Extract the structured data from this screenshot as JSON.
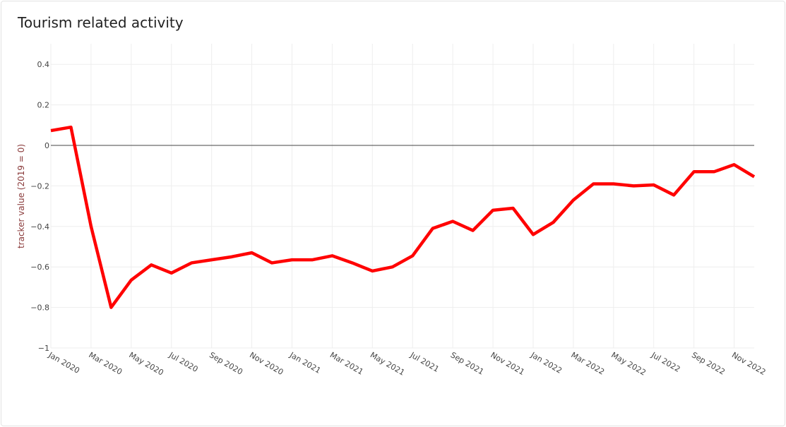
{
  "chart_data": {
    "type": "line",
    "title": "Tourism related activity",
    "xlabel": "",
    "ylabel": "tracker value (2019 = 0)",
    "ylim": [
      -1,
      0.5
    ],
    "yticks": [
      0.4,
      0.2,
      0,
      -0.2,
      -0.4,
      -0.6,
      -0.8,
      -1
    ],
    "ytick_labels": [
      "0.4",
      "0.2",
      "0",
      "−0.2",
      "−0.4",
      "−0.6",
      "−0.8",
      "−1"
    ],
    "xtick_labels": [
      "Jan 2020",
      "Mar 2020",
      "May 2020",
      "Jul 2020",
      "Sep 2020",
      "Nov 2020",
      "Jan 2021",
      "Mar 2021",
      "May 2021",
      "Jul 2021",
      "Sep 2021",
      "Nov 2021",
      "Jan 2022",
      "Mar 2022",
      "May 2022",
      "Jul 2022",
      "Sep 2022",
      "Nov 2022"
    ],
    "grid": true,
    "line_color": "#ff0000",
    "x": [
      "2020-01",
      "2020-02",
      "2020-03",
      "2020-04",
      "2020-05",
      "2020-06",
      "2020-07",
      "2020-08",
      "2020-09",
      "2020-10",
      "2020-11",
      "2020-12",
      "2021-01",
      "2021-02",
      "2021-03",
      "2021-04",
      "2021-05",
      "2021-06",
      "2021-07",
      "2021-08",
      "2021-09",
      "2021-10",
      "2021-11",
      "2021-12",
      "2022-01",
      "2022-02",
      "2022-03",
      "2022-04",
      "2022-05",
      "2022-06",
      "2022-07",
      "2022-08",
      "2022-09",
      "2022-10",
      "2022-11",
      "2022-12"
    ],
    "values": [
      0.073,
      0.09,
      -0.4,
      -0.8,
      -0.665,
      -0.59,
      -0.63,
      -0.58,
      -0.565,
      -0.55,
      -0.53,
      -0.58,
      -0.565,
      -0.565,
      -0.545,
      -0.58,
      -0.62,
      -0.6,
      -0.545,
      -0.41,
      -0.375,
      -0.42,
      -0.32,
      -0.31,
      -0.44,
      -0.38,
      -0.27,
      -0.19,
      -0.19,
      -0.2,
      -0.195,
      -0.245,
      -0.13,
      -0.13,
      -0.095,
      -0.155
    ]
  }
}
